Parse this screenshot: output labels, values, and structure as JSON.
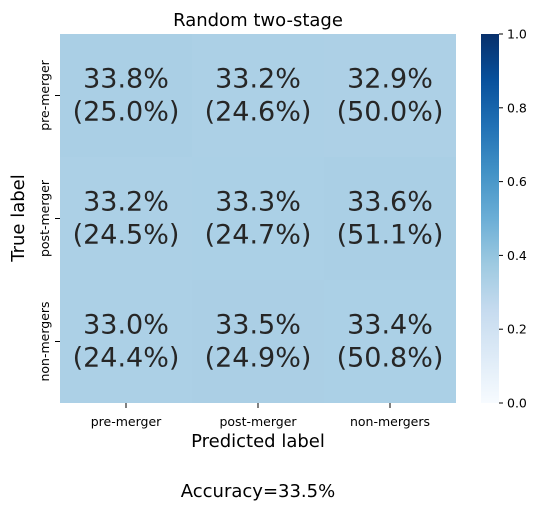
{
  "chart_data": {
    "type": "heatmap",
    "title": "Random two-stage",
    "xlabel": "Predicted label",
    "ylabel": "True label",
    "x_categories": [
      "pre-merger",
      "post-merger",
      "non-mergers"
    ],
    "y_categories": [
      "pre-merger",
      "post-merger",
      "non-mergers"
    ],
    "values": [
      [
        0.338,
        0.332,
        0.329
      ],
      [
        0.332,
        0.333,
        0.336
      ],
      [
        0.33,
        0.335,
        0.334
      ]
    ],
    "cell_labels": [
      [
        [
          "33.8%",
          "(25.0%)"
        ],
        [
          "33.2%",
          "(24.6%)"
        ],
        [
          "32.9%",
          "(50.0%)"
        ]
      ],
      [
        [
          "33.2%",
          "(24.5%)"
        ],
        [
          "33.3%",
          "(24.7%)"
        ],
        [
          "33.6%",
          "(51.1%)"
        ]
      ],
      [
        [
          "33.0%",
          "(24.4%)"
        ],
        [
          "33.5%",
          "(24.9%)"
        ],
        [
          "33.4%",
          "(50.8%)"
        ]
      ]
    ],
    "colorbar": {
      "colormap": "Blues",
      "range": [
        0.0,
        1.0
      ],
      "ticks": [
        0.0,
        0.2,
        0.4,
        0.6,
        0.8,
        1.0
      ],
      "tick_labels": [
        "0.0",
        "0.2",
        "0.4",
        "0.6",
        "0.8",
        "1.0"
      ]
    },
    "footer": "Accuracy=33.5%"
  }
}
